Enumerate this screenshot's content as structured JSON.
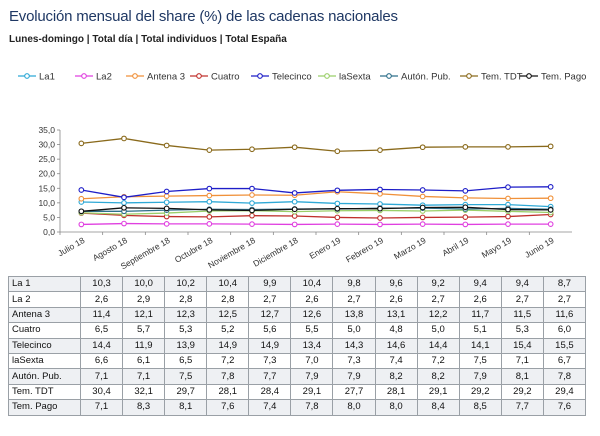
{
  "header": {
    "title": "Evolución mensual del share (%) de las cadenas nacionales",
    "subtitle": "Lunes-domingo | Total día | Total individuos | Total España"
  },
  "chart_data": {
    "type": "line",
    "categories": [
      "Julio 18",
      "Agosto 18",
      "Septiembre 18",
      "Octubre 18",
      "Noviembre 18",
      "Diciembre 18",
      "Enero 19",
      "Febrero 19",
      "Marzo 19",
      "Abril 19",
      "Mayo 19",
      "Junio 19"
    ],
    "ylim": [
      0,
      35
    ],
    "yticks": [
      "0,0",
      "5,0",
      "10,0",
      "15,0",
      "20,0",
      "25,0",
      "30,0",
      "35,0"
    ],
    "grid": false,
    "legend_position": "top",
    "series": [
      {
        "name": "La1",
        "color": "#2fa9d6",
        "values": [
          10.3,
          10.0,
          10.2,
          10.4,
          9.9,
          10.4,
          9.8,
          9.6,
          9.2,
          9.4,
          9.4,
          8.7
        ],
        "labels": [
          "10,3",
          "10,0",
          "10,2",
          "10,4",
          "9,9",
          "10,4",
          "9,8",
          "9,6",
          "9,2",
          "9,4",
          "9,4",
          "8,7"
        ]
      },
      {
        "name": "La2",
        "color": "#e040e0",
        "values": [
          2.6,
          2.9,
          2.8,
          2.8,
          2.7,
          2.6,
          2.7,
          2.6,
          2.7,
          2.6,
          2.7,
          2.7
        ],
        "labels": [
          "2,6",
          "2,9",
          "2,8",
          "2,8",
          "2,7",
          "2,6",
          "2,7",
          "2,6",
          "2,7",
          "2,6",
          "2,7",
          "2,7"
        ]
      },
      {
        "name": "Antena 3",
        "color": "#f0913a",
        "values": [
          11.4,
          12.1,
          12.3,
          12.5,
          12.7,
          12.6,
          13.8,
          13.1,
          12.2,
          11.7,
          11.5,
          11.6
        ],
        "labels": [
          "11,4",
          "12,1",
          "12,3",
          "12,5",
          "12,7",
          "12,6",
          "13,8",
          "13,1",
          "12,2",
          "11,7",
          "11,5",
          "11,6"
        ]
      },
      {
        "name": "Cuatro",
        "color": "#c0302c",
        "values": [
          6.5,
          5.7,
          5.3,
          5.2,
          5.6,
          5.5,
          5.0,
          4.8,
          5.0,
          5.1,
          5.3,
          6.0
        ],
        "labels": [
          "6,5",
          "5,7",
          "5,3",
          "5,2",
          "5,6",
          "5,5",
          "5,0",
          "4,8",
          "5,0",
          "5,1",
          "5,3",
          "6,0"
        ]
      },
      {
        "name": "Telecinco",
        "color": "#1e1ec8",
        "values": [
          14.4,
          11.9,
          13.9,
          14.9,
          14.9,
          13.4,
          14.3,
          14.6,
          14.4,
          14.1,
          15.4,
          15.5
        ],
        "labels": [
          "14,4",
          "11,9",
          "13,9",
          "14,9",
          "14,9",
          "13,4",
          "14,3",
          "14,6",
          "14,4",
          "14,1",
          "15,4",
          "15,5"
        ]
      },
      {
        "name": "laSexta",
        "color": "#9bcf6a",
        "values": [
          6.6,
          6.1,
          6.5,
          7.2,
          7.3,
          7.0,
          7.3,
          7.4,
          7.2,
          7.5,
          7.1,
          6.7
        ],
        "labels": [
          "6,6",
          "6,1",
          "6,5",
          "7,2",
          "7,3",
          "7,0",
          "7,3",
          "7,4",
          "7,2",
          "7,5",
          "7,1",
          "6,7"
        ]
      },
      {
        "name": "Autón. Pub.",
        "color": "#2d6f8a",
        "values": [
          7.1,
          7.1,
          7.5,
          7.8,
          7.7,
          7.9,
          7.9,
          8.2,
          8.2,
          7.9,
          8.1,
          7.8
        ],
        "labels": [
          "7,1",
          "7,1",
          "7,5",
          "7,8",
          "7,7",
          "7,9",
          "7,9",
          "8,2",
          "8,2",
          "7,9",
          "8,1",
          "7,8"
        ]
      },
      {
        "name": "Tem. TDT",
        "color": "#8a6a1c",
        "values": [
          30.4,
          32.1,
          29.7,
          28.1,
          28.4,
          29.1,
          27.7,
          28.1,
          29.1,
          29.2,
          29.2,
          29.4
        ],
        "labels": [
          "30,4",
          "32,1",
          "29,7",
          "28,1",
          "28,4",
          "29,1",
          "27,7",
          "28,1",
          "29,1",
          "29,2",
          "29,2",
          "29,4"
        ]
      },
      {
        "name": "Tem. Pago",
        "color": "#111111",
        "values": [
          7.1,
          8.3,
          8.1,
          7.6,
          7.4,
          7.8,
          8.0,
          8.0,
          8.4,
          8.5,
          7.7,
          7.6
        ],
        "labels": [
          "7,1",
          "8,3",
          "8,1",
          "7,6",
          "7,4",
          "7,8",
          "8,0",
          "8,0",
          "8,4",
          "8,5",
          "7,7",
          "7,6"
        ]
      }
    ]
  },
  "table": {
    "row_labels": [
      "La 1",
      "La 2",
      "Antena 3",
      "Cuatro",
      "Telecinco",
      "laSexta",
      "Autón. Pub.",
      "Tem. TDT",
      "Tem. Pago"
    ]
  }
}
